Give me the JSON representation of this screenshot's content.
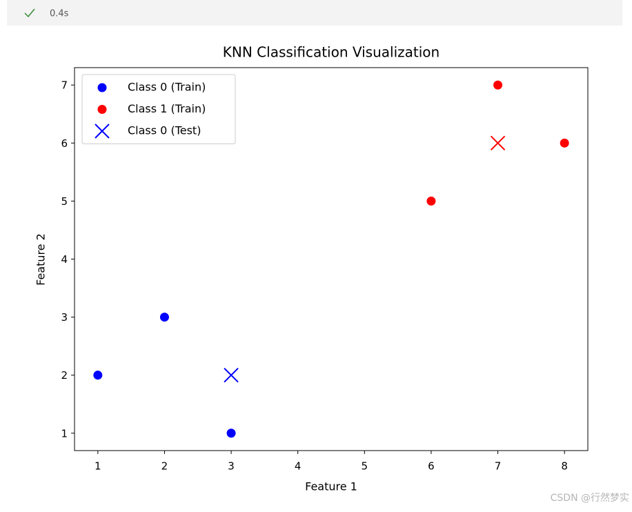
{
  "cell_status": {
    "time": "0.4s"
  },
  "watermark": "CSDN @行然梦实",
  "chart_data": {
    "type": "scatter",
    "title": "KNN Classification Visualization",
    "xlabel": "Feature 1",
    "ylabel": "Feature 2",
    "xlim": [
      0.65,
      8.35
    ],
    "ylim": [
      0.7,
      7.3
    ],
    "xticks": [
      1,
      2,
      3,
      4,
      5,
      6,
      7,
      8
    ],
    "yticks": [
      1,
      2,
      3,
      4,
      5,
      6,
      7
    ],
    "legend": "upper left",
    "series": [
      {
        "name": "Class 0 (Train)",
        "color": "#0000ff",
        "marker": "o",
        "x": [
          1,
          2,
          3
        ],
        "y": [
          2,
          3,
          1
        ]
      },
      {
        "name": "Class 1 (Train)",
        "color": "#ff0000",
        "marker": "o",
        "x": [
          6,
          7,
          8
        ],
        "y": [
          5,
          7,
          6
        ]
      },
      {
        "name": "Class 0 (Test)",
        "color": "#0000ff",
        "marker": "x",
        "x": [
          3
        ],
        "y": [
          2
        ]
      },
      {
        "color": "#ff0000",
        "marker": "x",
        "x": [
          7
        ],
        "y": [
          6
        ]
      }
    ]
  }
}
